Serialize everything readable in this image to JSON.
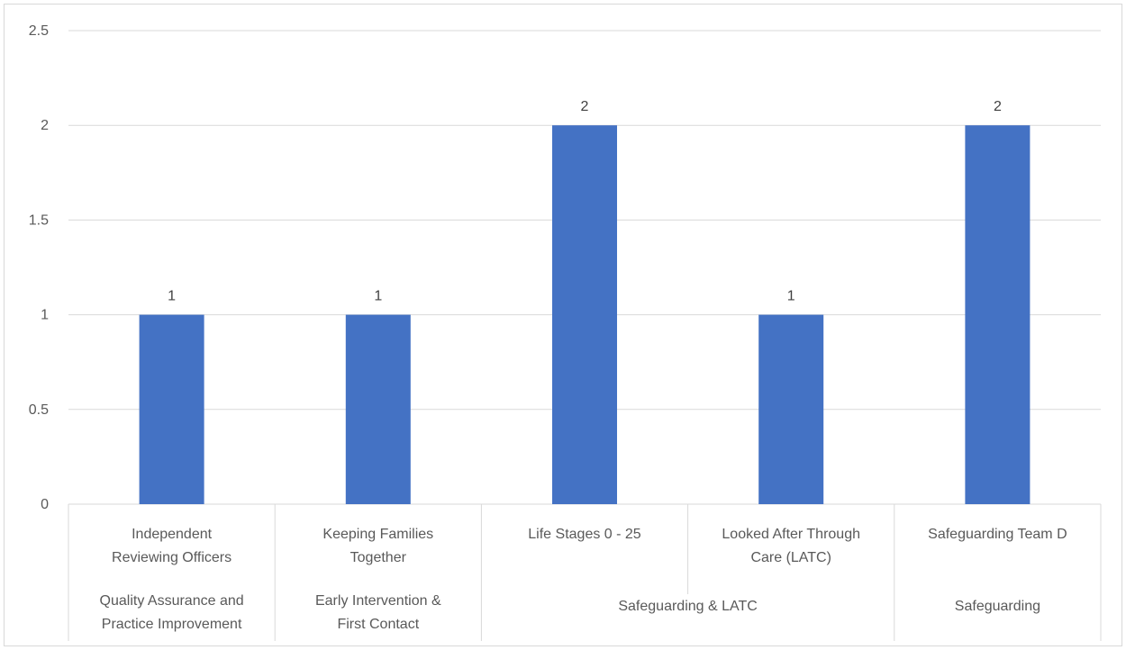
{
  "chart_data": {
    "type": "bar",
    "categories": [
      {
        "label": [
          "Independent",
          "Reviewing Officers"
        ],
        "group": "qa"
      },
      {
        "label": [
          "Keeping Families",
          "Together"
        ],
        "group": "ei"
      },
      {
        "label": [
          "Life Stages 0 - 25"
        ],
        "group": "sl"
      },
      {
        "label": [
          "Looked After Through",
          "Care (LATC)"
        ],
        "group": "sl"
      },
      {
        "label": [
          "Safeguarding Team D"
        ],
        "group": "sg"
      }
    ],
    "groups": [
      {
        "id": "qa",
        "label": [
          "Quality Assurance and",
          "Practice Improvement"
        ]
      },
      {
        "id": "ei",
        "label": [
          "Early Intervention &",
          "First Contact"
        ]
      },
      {
        "id": "sl",
        "label": [
          "Safeguarding & LATC"
        ]
      },
      {
        "id": "sg",
        "label": [
          "Safeguarding"
        ]
      }
    ],
    "values": [
      1,
      1,
      2,
      1,
      2
    ],
    "data_labels": [
      "1",
      "1",
      "2",
      "1",
      "2"
    ],
    "ylim": [
      0,
      2.5
    ],
    "yticks": [
      0,
      0.5,
      1,
      1.5,
      2,
      2.5
    ],
    "ytick_labels": [
      "0",
      "0.5",
      "1",
      "1.5",
      "2",
      "2.5"
    ],
    "title": "",
    "xlabel": "",
    "ylabel": "",
    "grid": true,
    "legend": "none",
    "bar_color": "#4472c4",
    "grid_color": "#d9d9d9"
  }
}
